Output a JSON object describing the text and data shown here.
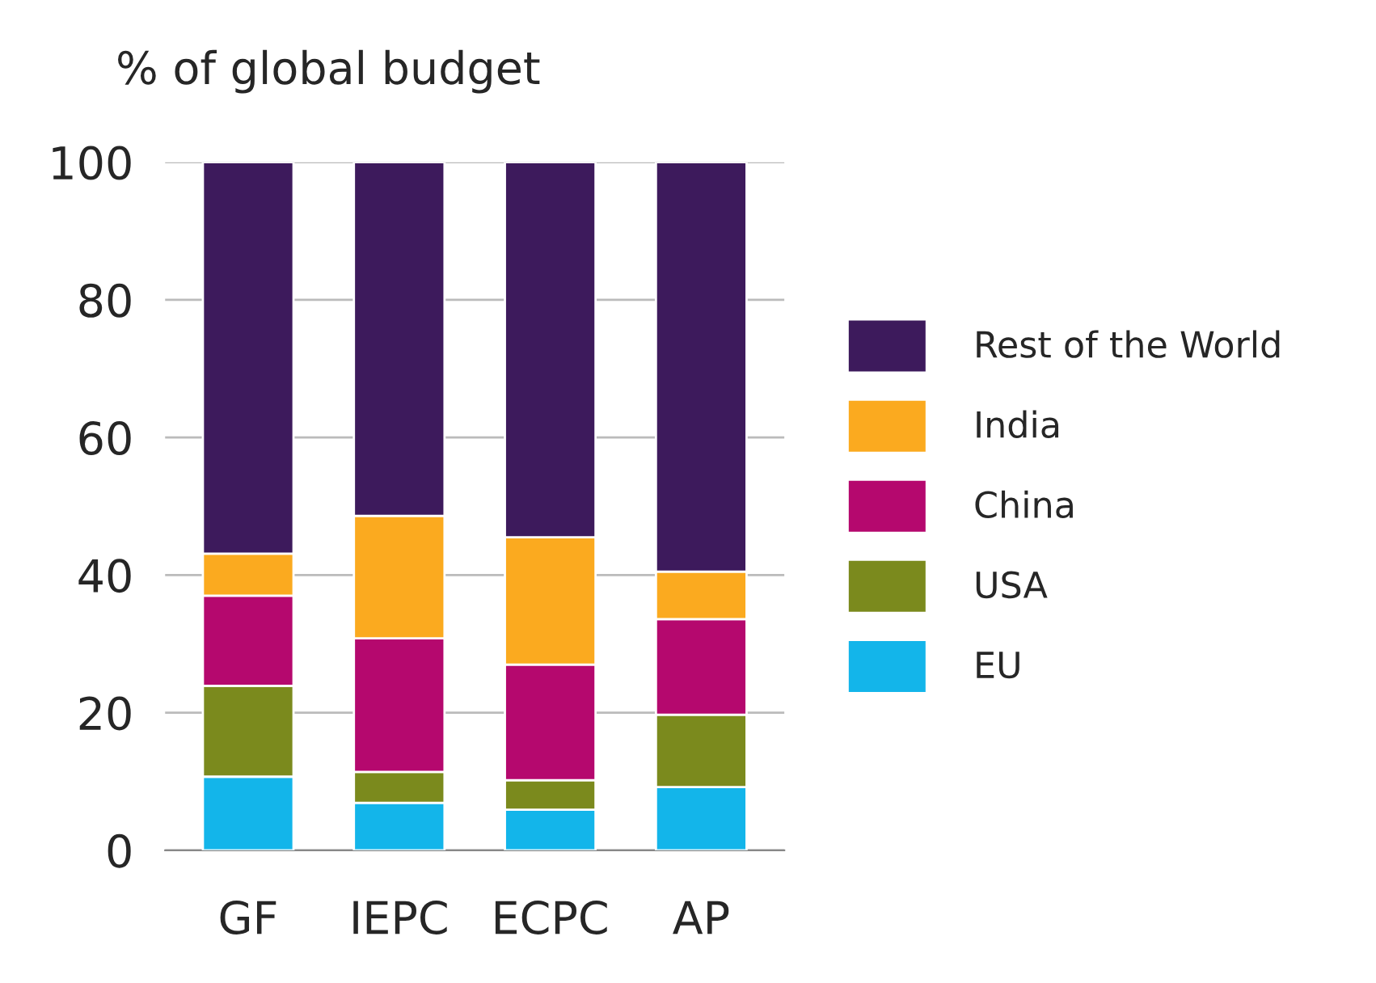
{
  "chart_data": {
    "type": "bar",
    "stacked": true,
    "ylabel": "% of global budget",
    "categories": [
      "GF",
      "IEPC",
      "ECPC",
      "AP"
    ],
    "series": [
      {
        "name": "EU",
        "color": "#13b5ea",
        "values": [
          10.7,
          6.9,
          5.9,
          9.2
        ]
      },
      {
        "name": "USA",
        "color": "#7b8a1d",
        "values": [
          13.2,
          4.5,
          4.3,
          10.5
        ]
      },
      {
        "name": "China",
        "color": "#b5086e",
        "values": [
          13.1,
          19.4,
          16.8,
          13.9
        ]
      },
      {
        "name": "India",
        "color": "#fbaa1f",
        "values": [
          6.1,
          17.8,
          18.5,
          6.9
        ]
      },
      {
        "name": "Rest of the World",
        "color": "#3d1a5c",
        "values": [
          56.9,
          51.4,
          54.5,
          59.5
        ]
      }
    ],
    "ylim": [
      0,
      100
    ],
    "yticks": [
      0,
      20,
      40,
      60,
      80,
      100
    ],
    "grid": "y",
    "legend": "right"
  }
}
